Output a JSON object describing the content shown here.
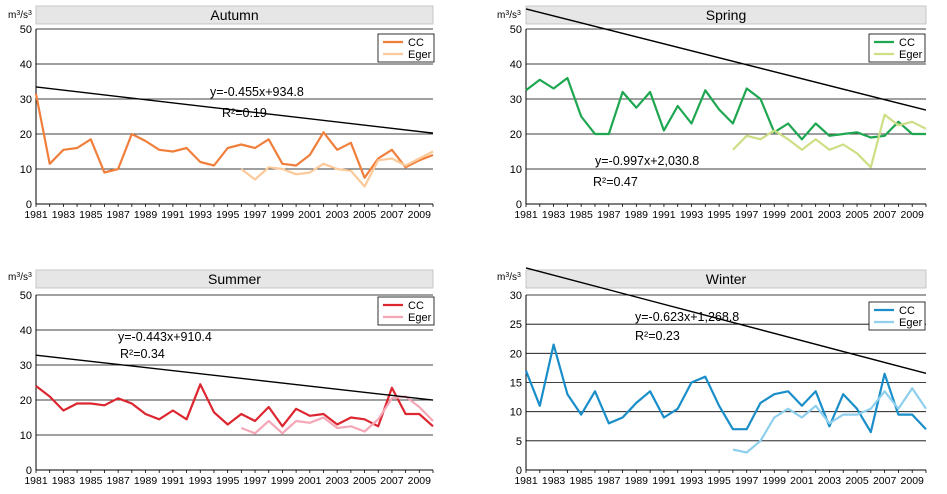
{
  "chart_data": [
    {
      "type": "line",
      "title": "Autumn",
      "ylabel": "m3/s3",
      "ylim": [
        0,
        50
      ],
      "yticks": [
        0,
        10,
        20,
        30,
        40,
        50
      ],
      "xlim": [
        1981,
        2010
      ],
      "xticks": [
        1981,
        1983,
        1985,
        1987,
        1989,
        1991,
        1993,
        1995,
        1997,
        1999,
        2001,
        2003,
        2005,
        2007,
        2009
      ],
      "grid": "horizontal",
      "legend_position": "top-right",
      "series": [
        {
          "name": "CC",
          "color": "#f07f3c",
          "x": [
            1981,
            1982,
            1983,
            1984,
            1985,
            1986,
            1987,
            1988,
            1989,
            1990,
            1991,
            1992,
            1993,
            1994,
            1995,
            1996,
            1997,
            1998,
            1999,
            2000,
            2001,
            2002,
            2003,
            2004,
            2005,
            2006,
            2007,
            2008,
            2009,
            2010
          ],
          "y": [
            31.5,
            11.5,
            15.5,
            16.0,
            18.5,
            9.0,
            10.0,
            20.0,
            18.0,
            15.5,
            15.0,
            16.0,
            12.0,
            11.0,
            16.0,
            17.0,
            16.0,
            18.5,
            11.5,
            11.0,
            14.0,
            20.5,
            15.5,
            17.5,
            7.5,
            13.0,
            15.5,
            10.5,
            12.5,
            14.0
          ]
        },
        {
          "name": "Eger",
          "color": "#fbc99a",
          "x": [
            1996,
            1997,
            1998,
            1999,
            2000,
            2001,
            2002,
            2003,
            2004,
            2005,
            2006,
            2007,
            2008,
            2009,
            2010
          ],
          "y": [
            10.0,
            7.0,
            10.5,
            10.0,
            8.5,
            9.0,
            11.5,
            10.0,
            9.5,
            5.0,
            12.5,
            13.0,
            11.0,
            13.0,
            15.0
          ]
        }
      ],
      "trendline": {
        "slope": -0.455,
        "intercept": 934.8,
        "color": "#000000"
      },
      "annotations": {
        "equation": "y=-0.455x+934.8",
        "r2": "R²=0.19"
      }
    },
    {
      "type": "line",
      "title": "Spring",
      "ylabel": "m3/s3",
      "ylim": [
        0,
        50
      ],
      "yticks": [
        0,
        10,
        20,
        30,
        40,
        50
      ],
      "xlim": [
        1981,
        2010
      ],
      "xticks": [
        1981,
        1983,
        1985,
        1987,
        1989,
        1991,
        1993,
        1995,
        1997,
        1999,
        2001,
        2003,
        2005,
        2007,
        2009
      ],
      "grid": "horizontal",
      "legend_position": "top-right",
      "series": [
        {
          "name": "CC",
          "color": "#1ea650",
          "x": [
            1981,
            1982,
            1983,
            1984,
            1985,
            1986,
            1987,
            1988,
            1989,
            1990,
            1991,
            1992,
            1993,
            1994,
            1995,
            1996,
            1997,
            1998,
            1999,
            2000,
            2001,
            2002,
            2003,
            2004,
            2005,
            2006,
            2007,
            2008,
            2009,
            2010
          ],
          "y": [
            32.5,
            35.5,
            33.0,
            36.0,
            25.0,
            20.0,
            20.0,
            32.0,
            27.5,
            32.0,
            21.0,
            28.0,
            23.0,
            32.5,
            27.0,
            23.0,
            33.0,
            30.0,
            20.5,
            23.0,
            18.5,
            23.0,
            19.5,
            20.0,
            20.5,
            19.0,
            19.5,
            23.5,
            20.0,
            20.0
          ]
        },
        {
          "name": "Eger",
          "color": "#cddf85",
          "x": [
            1996,
            1997,
            1998,
            1999,
            2000,
            2001,
            2002,
            2003,
            2004,
            2005,
            2006,
            2007,
            2008,
            2009,
            2010
          ],
          "y": [
            15.5,
            19.5,
            18.5,
            21.0,
            18.5,
            15.5,
            18.5,
            15.5,
            17.0,
            14.5,
            10.5,
            25.5,
            22.5,
            23.5,
            21.5
          ]
        }
      ],
      "trendline": {
        "slope": -0.997,
        "intercept": 2030.8,
        "color": "#000000"
      },
      "annotations": {
        "equation": "y=-0.997x+2,030.8",
        "r2": "R²=0.47"
      }
    },
    {
      "type": "line",
      "title": "Summer",
      "ylabel": "m3/s3",
      "ylim": [
        0,
        50
      ],
      "yticks": [
        0,
        10,
        20,
        30,
        40,
        50
      ],
      "xlim": [
        1981,
        2010
      ],
      "xticks": [
        1981,
        1983,
        1985,
        1987,
        1989,
        1991,
        1993,
        1995,
        1997,
        1999,
        2001,
        2003,
        2005,
        2007,
        2009
      ],
      "grid": "horizontal",
      "legend_position": "top-right",
      "series": [
        {
          "name": "CC",
          "color": "#dc2630",
          "x": [
            1981,
            1982,
            1983,
            1984,
            1985,
            1986,
            1987,
            1988,
            1989,
            1990,
            1991,
            1992,
            1993,
            1994,
            1995,
            1996,
            1997,
            1998,
            1999,
            2000,
            2001,
            2002,
            2003,
            2004,
            2005,
            2006,
            2007,
            2008,
            2009,
            2010
          ],
          "y": [
            24.0,
            21.0,
            17.0,
            19.0,
            19.0,
            18.5,
            20.5,
            19.0,
            16.0,
            14.5,
            17.0,
            14.5,
            24.5,
            16.5,
            13.0,
            16.0,
            14.0,
            18.0,
            12.5,
            17.5,
            15.5,
            16.0,
            13.0,
            15.0,
            14.5,
            12.5,
            23.5,
            16.0,
            16.0,
            12.5
          ]
        },
        {
          "name": "Eger",
          "color": "#f4a7b6",
          "x": [
            1996,
            1997,
            1998,
            1999,
            2000,
            2001,
            2002,
            2003,
            2004,
            2005,
            2006,
            2007,
            2008,
            2009,
            2010
          ],
          "y": [
            12.0,
            10.5,
            14.0,
            10.5,
            14.0,
            13.5,
            15.0,
            12.0,
            12.5,
            11.0,
            14.5,
            20.5,
            21.0,
            18.0,
            14.0
          ]
        }
      ],
      "trendline": {
        "slope": -0.443,
        "intercept": 910.4,
        "color": "#000000"
      },
      "annotations": {
        "equation": "y=-0.443x+910.4",
        "r2": "R²=0.34"
      }
    },
    {
      "type": "line",
      "title": "Winter",
      "ylabel": "m3/s3",
      "ylim": [
        0,
        30
      ],
      "yticks": [
        0,
        5,
        10,
        15,
        20,
        25,
        30
      ],
      "xlim": [
        1981,
        2010
      ],
      "xticks": [
        1981,
        1983,
        1985,
        1987,
        1989,
        1991,
        1993,
        1995,
        1997,
        1999,
        2001,
        2003,
        2005,
        2007,
        2009
      ],
      "grid": "horizontal",
      "legend_position": "top-right",
      "series": [
        {
          "name": "CC",
          "color": "#1a8ec9",
          "x": [
            1981,
            1982,
            1983,
            1984,
            1985,
            1986,
            1987,
            1988,
            1989,
            1990,
            1991,
            1992,
            1993,
            1994,
            1995,
            1996,
            1997,
            1998,
            1999,
            2000,
            2001,
            2002,
            2003,
            2004,
            2005,
            2006,
            2007,
            2008,
            2009,
            2010
          ],
          "y": [
            17.0,
            11.0,
            21.5,
            13.0,
            9.5,
            13.5,
            8.0,
            9.0,
            11.5,
            13.5,
            9.0,
            10.5,
            15.0,
            16.0,
            11.0,
            7.0,
            7.0,
            11.5,
            13.0,
            13.5,
            11.0,
            13.5,
            7.5,
            13.0,
            10.5,
            6.5,
            16.5,
            9.5,
            9.5,
            7.0
          ]
        },
        {
          "name": "Eger",
          "color": "#8ecfee",
          "x": [
            1996,
            1997,
            1998,
            1999,
            2000,
            2001,
            2002,
            2003,
            2004,
            2005,
            2006,
            2007,
            2008,
            2009,
            2010
          ],
          "y": [
            3.5,
            3.0,
            5.0,
            9.0,
            10.5,
            9.0,
            11.0,
            8.0,
            9.5,
            9.5,
            10.5,
            13.5,
            10.5,
            14.0,
            10.5
          ]
        }
      ],
      "trendline": {
        "slope": -0.623,
        "intercept": 1268.8,
        "color": "#000000"
      },
      "annotations": {
        "equation": "y=-0.623x+1,268.8",
        "r2": "R²=0.23"
      }
    }
  ]
}
